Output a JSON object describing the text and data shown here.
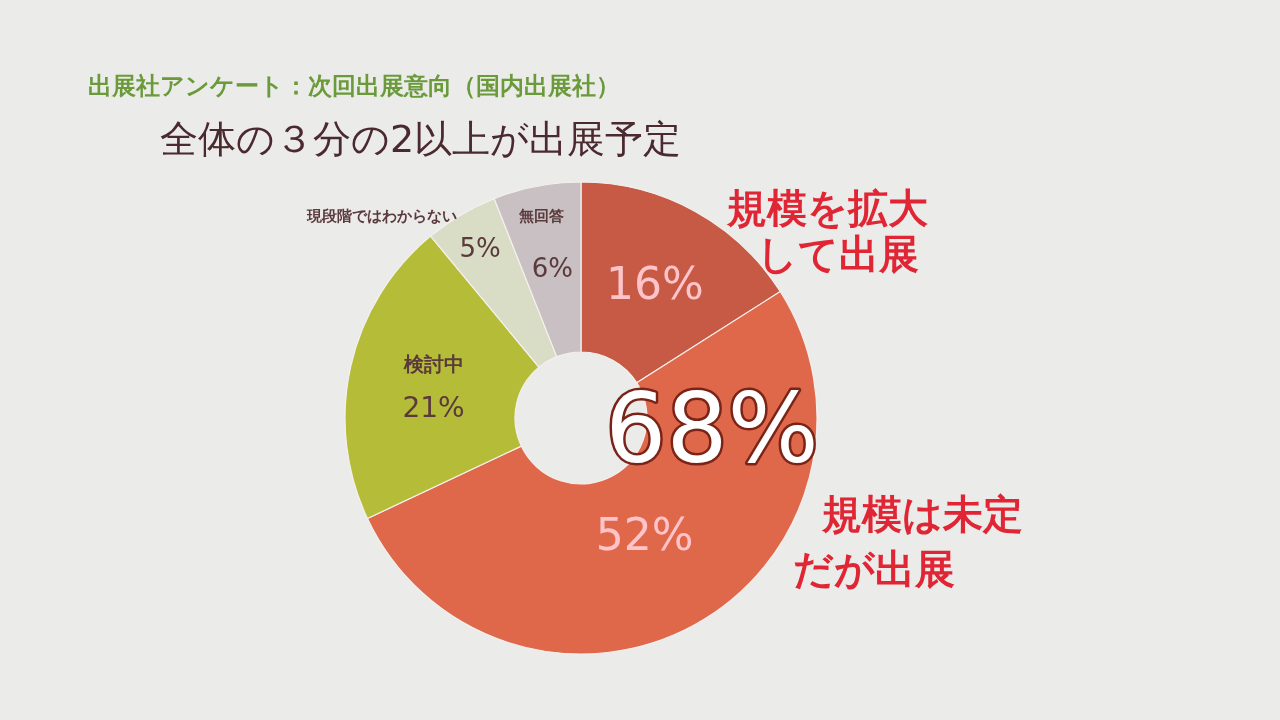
{
  "chart_data": {
    "type": "donut",
    "title": "出展社アンケート：次回出展意向（国内出展社）",
    "subtitle": "全体の３分の2以上が出展予定",
    "categories": [
      "規模を拡大して出展",
      "規模は未定だが出展",
      "検討中",
      "現段階ではわからない",
      "無回答"
    ],
    "values": [
      16,
      52,
      21,
      5,
      6
    ],
    "value_labels": [
      "16%",
      "52%",
      "21%",
      "5%",
      "6%"
    ],
    "colors": [
      "#c65a44",
      "#e0684a",
      "#b4bc38",
      "#d9ddc6",
      "#c8c0c3"
    ],
    "annotations": [
      "68%"
    ]
  }
}
